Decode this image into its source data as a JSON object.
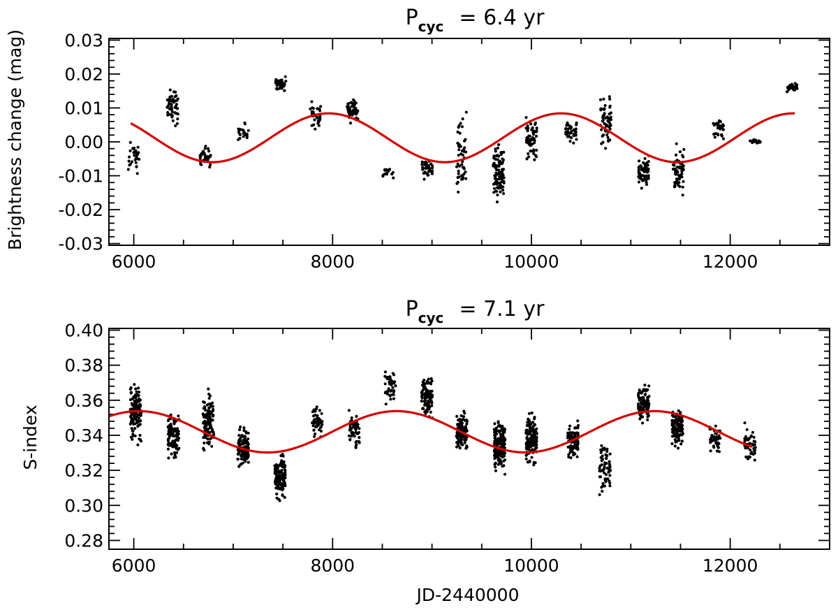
{
  "chart_data": [
    {
      "type": "scatter",
      "title": {
        "main": "P",
        "sub": "cyc",
        "rest": "= 6.4 yr"
      },
      "xlabel": "",
      "ylabel": "Brightness change (mag)",
      "xlim": [
        5750,
        13000
      ],
      "ylim": [
        -0.0305,
        0.0305
      ],
      "xticks": [
        6000,
        8000,
        10000,
        12000
      ],
      "xtick_labels": [
        "6000",
        "8000",
        "10000",
        "12000"
      ],
      "yticks": [
        -0.03,
        -0.02,
        -0.01,
        0.0,
        0.01,
        0.02,
        0.03
      ],
      "ytick_labels": [
        "-0.03",
        "-0.02",
        "-0.01",
        "0.00",
        "0.01",
        "0.02",
        "0.03"
      ],
      "point_color": "#000000",
      "fit_color": "#d40000",
      "fit": {
        "model": "sine",
        "period_days": 2338,
        "mean": 0.0012,
        "amplitude": 0.0072,
        "peak_x": 7960,
        "x_range": [
          5970,
          12650
        ]
      },
      "clusters": [
        {
          "x": 6000,
          "y": -0.0045,
          "n": 30,
          "spread": 0.0032
        },
        {
          "x": 6390,
          "y": 0.0107,
          "n": 55,
          "spread": 0.0028
        },
        {
          "x": 6720,
          "y": -0.0045,
          "n": 35,
          "spread": 0.0015
        },
        {
          "x": 7100,
          "y": 0.0028,
          "n": 22,
          "spread": 0.0018
        },
        {
          "x": 7480,
          "y": 0.0172,
          "n": 40,
          "spread": 0.0013
        },
        {
          "x": 7830,
          "y": 0.0075,
          "n": 32,
          "spread": 0.0022
        },
        {
          "x": 8200,
          "y": 0.0098,
          "n": 45,
          "spread": 0.0021
        },
        {
          "x": 8560,
          "y": -0.0088,
          "n": 16,
          "spread": 0.001
        },
        {
          "x": 8950,
          "y": -0.0077,
          "n": 40,
          "spread": 0.0017
        },
        {
          "x": 9300,
          "y": -0.0045,
          "n": 48,
          "spread": 0.0065
        },
        {
          "x": 9670,
          "y": -0.0085,
          "n": 90,
          "spread": 0.0045
        },
        {
          "x": 10000,
          "y": 0.0005,
          "n": 62,
          "spread": 0.004
        },
        {
          "x": 10400,
          "y": 0.0028,
          "n": 38,
          "spread": 0.0018
        },
        {
          "x": 10750,
          "y": 0.0065,
          "n": 55,
          "spread": 0.0045
        },
        {
          "x": 11130,
          "y": -0.0088,
          "n": 62,
          "spread": 0.0025
        },
        {
          "x": 11480,
          "y": -0.0085,
          "n": 62,
          "spread": 0.004
        },
        {
          "x": 11880,
          "y": 0.0035,
          "n": 32,
          "spread": 0.002
        },
        {
          "x": 12250,
          "y": 0.0002,
          "n": 18,
          "spread": 0.0007
        },
        {
          "x": 12620,
          "y": 0.016,
          "n": 28,
          "spread": 0.0007
        }
      ]
    },
    {
      "type": "scatter",
      "title": {
        "main": "P",
        "sub": "cyc",
        "rest": "= 7.1 yr"
      },
      "xlabel": "JD-2440000",
      "ylabel": "S-index",
      "xlim": [
        5750,
        13000
      ],
      "ylim": [
        0.275,
        0.401
      ],
      "xticks": [
        6000,
        8000,
        10000,
        12000
      ],
      "xtick_labels": [
        "6000",
        "8000",
        "10000",
        "12000"
      ],
      "yticks": [
        0.28,
        0.3,
        0.32,
        0.34,
        0.36,
        0.38,
        0.4
      ],
      "ytick_labels": [
        "0.28",
        "0.30",
        "0.32",
        "0.34",
        "0.36",
        "0.38",
        "0.40"
      ],
      "point_color": "#000000",
      "fit_color": "#d40000",
      "fit": {
        "model": "sine",
        "period_days": 2593,
        "mean": 0.342,
        "amplitude": 0.0118,
        "peak_x": 6050,
        "x_range": [
          5750,
          12220
        ]
      },
      "clusters": [
        {
          "x": 6020,
          "y": 0.353,
          "n": 130,
          "spread": 0.0085
        },
        {
          "x": 6400,
          "y": 0.34,
          "n": 110,
          "spread": 0.007
        },
        {
          "x": 6750,
          "y": 0.348,
          "n": 120,
          "spread": 0.009
        },
        {
          "x": 7100,
          "y": 0.333,
          "n": 110,
          "spread": 0.0065
        },
        {
          "x": 7470,
          "y": 0.316,
          "n": 130,
          "spread": 0.007
        },
        {
          "x": 7850,
          "y": 0.347,
          "n": 50,
          "spread": 0.0045
        },
        {
          "x": 8220,
          "y": 0.343,
          "n": 55,
          "spread": 0.006
        },
        {
          "x": 8580,
          "y": 0.368,
          "n": 45,
          "spread": 0.006
        },
        {
          "x": 8950,
          "y": 0.362,
          "n": 100,
          "spread": 0.0055
        },
        {
          "x": 9300,
          "y": 0.342,
          "n": 110,
          "spread": 0.0065
        },
        {
          "x": 9680,
          "y": 0.334,
          "n": 190,
          "spread": 0.0085
        },
        {
          "x": 10000,
          "y": 0.338,
          "n": 130,
          "spread": 0.008
        },
        {
          "x": 10420,
          "y": 0.337,
          "n": 90,
          "spread": 0.0055
        },
        {
          "x": 10740,
          "y": 0.322,
          "n": 65,
          "spread": 0.0075
        },
        {
          "x": 11130,
          "y": 0.358,
          "n": 100,
          "spread": 0.0065
        },
        {
          "x": 11470,
          "y": 0.345,
          "n": 110,
          "spread": 0.006
        },
        {
          "x": 11850,
          "y": 0.338,
          "n": 45,
          "spread": 0.005
        },
        {
          "x": 12200,
          "y": 0.335,
          "n": 45,
          "spread": 0.006
        }
      ]
    }
  ]
}
